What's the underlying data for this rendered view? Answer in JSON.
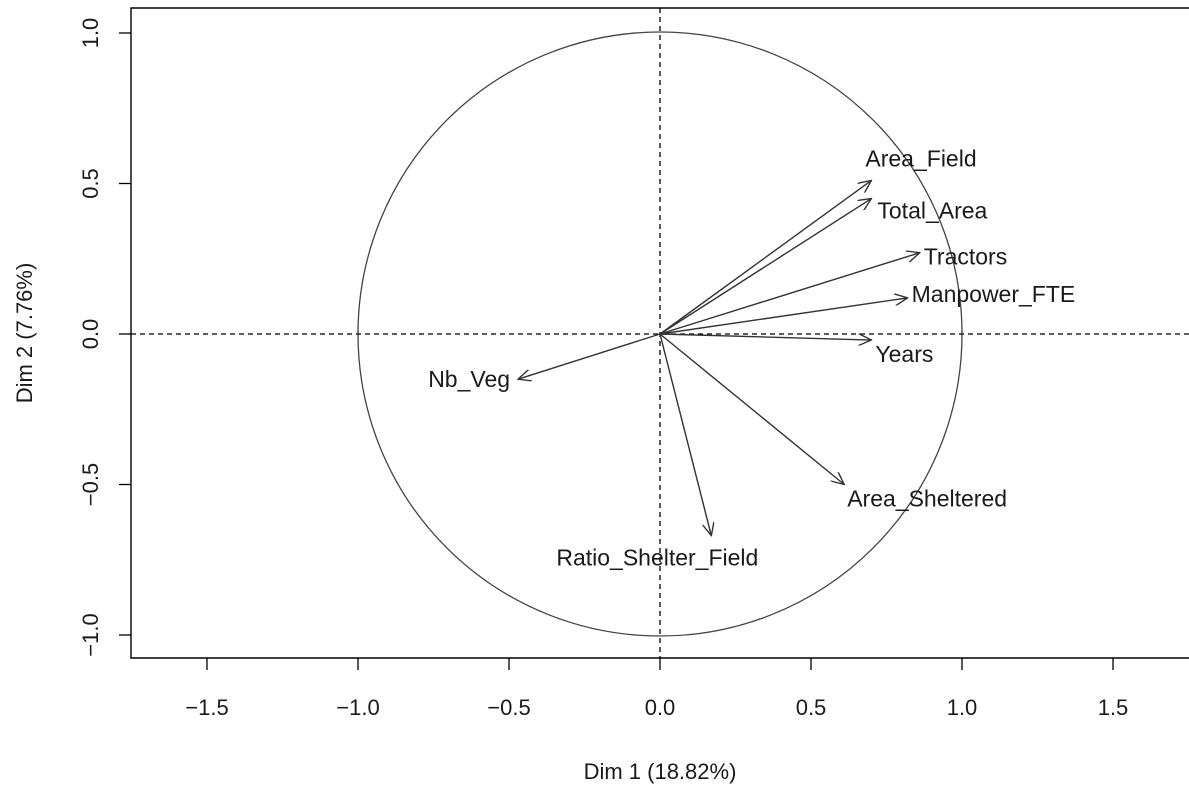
{
  "chart_data": {
    "type": "scatter",
    "subtype": "pca-correlation-circle",
    "title": "",
    "xlabel": "Dim 1 (18.82%)",
    "ylabel": "Dim 2 (7.76%)",
    "xlim": [
      -1.75,
      1.75
    ],
    "ylim": [
      -1.08,
      1.08
    ],
    "xticks": [
      -1.5,
      -1.0,
      -0.5,
      0.0,
      0.5,
      1.0,
      1.5
    ],
    "xtick_labels": [
      "−1.5",
      "−1.0",
      "−0.5",
      "0.0",
      "0.5",
      "1.0",
      "1.5"
    ],
    "yticks": [
      -1.0,
      -0.5,
      0.0,
      0.5,
      1.0
    ],
    "ytick_labels": [
      "−1.0",
      "−0.5",
      "0.0",
      "0.5",
      "1.0"
    ],
    "grid": false,
    "unit_circle": true,
    "reference_lines": "dashed lines at x = 0 and y = 0",
    "arrow_color": "#333333",
    "variables": [
      {
        "name": "Area_Field",
        "x": 0.7,
        "y": 0.51
      },
      {
        "name": "Total_Area",
        "x": 0.7,
        "y": 0.45
      },
      {
        "name": "Tractors",
        "x": 0.86,
        "y": 0.27
      },
      {
        "name": "Manpower_FTE",
        "x": 0.82,
        "y": 0.12
      },
      {
        "name": "Years",
        "x": 0.7,
        "y": -0.02
      },
      {
        "name": "Nb_Veg",
        "x": -0.47,
        "y": -0.15
      },
      {
        "name": "Area_Sheltered",
        "x": 0.61,
        "y": -0.5
      },
      {
        "name": "Ratio_Shelter_Field",
        "x": 0.17,
        "y": -0.67
      }
    ]
  }
}
